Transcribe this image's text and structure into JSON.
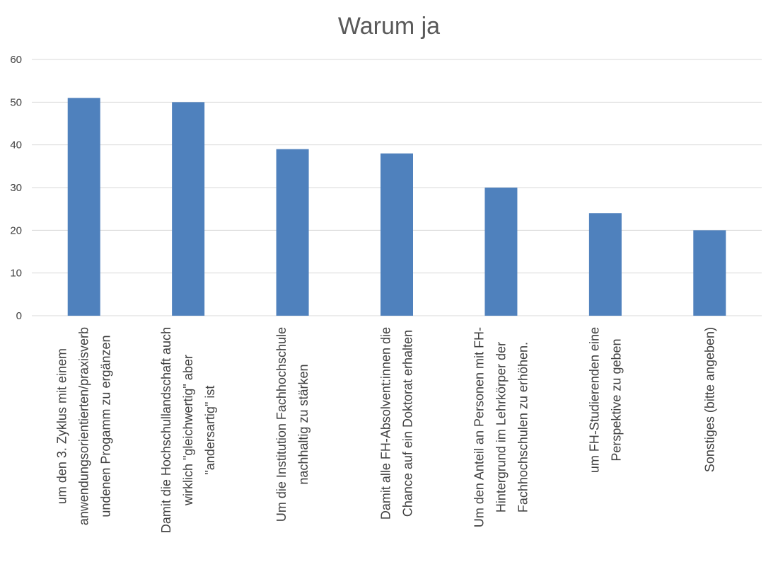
{
  "chart_data": {
    "type": "bar",
    "title": "Warum ja",
    "xlabel": "",
    "ylabel": "",
    "ylim": [
      0,
      60
    ],
    "yticks": [
      0,
      10,
      20,
      30,
      40,
      50,
      60
    ],
    "grid": true,
    "legend": "none",
    "bar_color": "#4f81bd",
    "categories": [
      "um den 3. Zyklus mit einem anwendungsorientierten/praxisverb undenen Progamm zu ergänzen",
      "Damit die Hochschullandschaft auch wirklich \"gleichwertig\" aber \"andersartig\" ist",
      "Um die Institution Fachhochschule nachhaltig zu stärken",
      "Damit alle FH-Absolvent:innen die Chance auf ein Doktorat erhalten",
      "Um den Anteil an Personen mit FH-Hintergrund im Lehrkörper der Fachhochschulen zu erhöhen.",
      "um FH-Studierenden eine Perspektive zu geben",
      "Sonstiges (bitte angeben)"
    ],
    "category_lines": [
      [
        "um den 3. Zyklus mit einem",
        "anwendungsorientierten/praxisverb",
        "undenen Progamm zu ergänzen"
      ],
      [
        "Damit die Hochschullandschaft auch",
        "wirklich \"gleichwertig\" aber",
        "\"andersartig\" ist"
      ],
      [
        "Um die Institution Fachhochschule",
        "nachhaltig zu stärken"
      ],
      [
        "Damit alle FH-Absolvent:innen die",
        "Chance auf ein Doktorat erhalten"
      ],
      [
        "Um den Anteil an Personen mit FH-",
        "Hintergrund im Lehrkörper der",
        "Fachhochschulen zu erhöhen."
      ],
      [
        "um FH-Studierenden eine",
        "Perspektive zu geben"
      ],
      [
        "Sonstiges (bitte angeben)"
      ]
    ],
    "values": [
      51,
      50,
      39,
      38,
      30,
      24,
      20
    ]
  }
}
